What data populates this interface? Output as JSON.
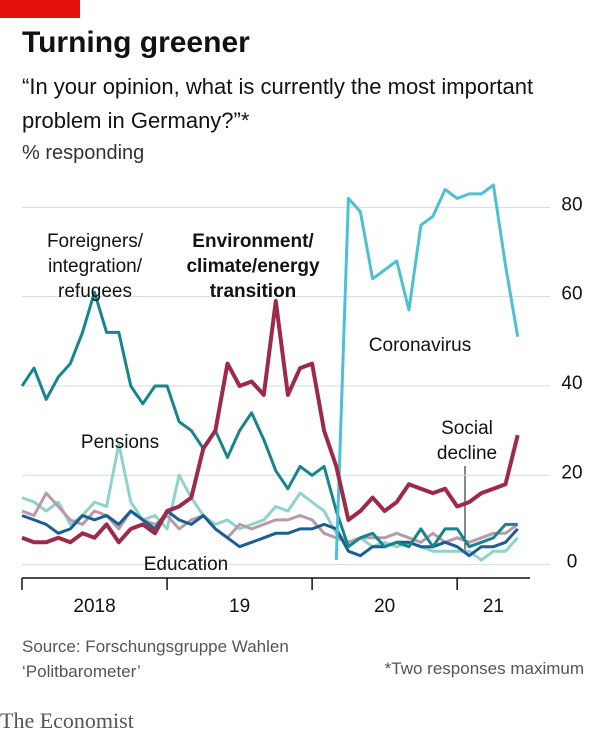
{
  "chart_data": {
    "type": "line",
    "title": "Turning greener",
    "subtitle": "“In your opinion, what is currently the most important problem in Germany?”*",
    "y_axis_label": "% responding",
    "source": "Source: Forschungsgruppe Wahlen ‘Politbarometer’",
    "note": "*Two responses maximum",
    "brand": "The Economist",
    "x": [
      2018,
      2018.083,
      2018.167,
      2018.25,
      2018.333,
      2018.417,
      2018.5,
      2018.583,
      2018.667,
      2018.75,
      2018.833,
      2018.917,
      2019,
      2019.083,
      2019.167,
      2019.25,
      2019.333,
      2019.417,
      2019.5,
      2019.583,
      2019.667,
      2019.75,
      2019.833,
      2019.917,
      2020,
      2020.083,
      2020.167,
      2020.25,
      2020.333,
      2020.417,
      2020.5,
      2020.583,
      2020.667,
      2020.75,
      2020.833,
      2020.917,
      2021,
      2021.083,
      2021.167,
      2021.25,
      2021.333,
      2021.417
    ],
    "xlim": [
      2018,
      2021.64
    ],
    "xticks": [
      {
        "value": 2018.5,
        "label": "2018"
      },
      {
        "value": 2019.5,
        "label": "19"
      },
      {
        "value": 2020.5,
        "label": "20"
      },
      {
        "value": 2021.25,
        "label": "21"
      }
    ],
    "xtick_marks": [
      2018,
      2019,
      2020,
      2021
    ],
    "ylim": [
      -3,
      85
    ],
    "yticks": [
      0,
      20,
      40,
      60,
      80
    ],
    "grid": true,
    "series": [
      {
        "name": "Pensions",
        "color": "#8fd3cc",
        "values": [
          15,
          14,
          12,
          14,
          9,
          11,
          14,
          13,
          27,
          14,
          10,
          11,
          8,
          20,
          15,
          11,
          9,
          10,
          8,
          9,
          10,
          13,
          12,
          16,
          14,
          12,
          7,
          5,
          6,
          4,
          5,
          4,
          5,
          4,
          3,
          3,
          3,
          3,
          1,
          3,
          3,
          6
        ]
      },
      {
        "name": "Social\ndecline",
        "color": "#b99aa6",
        "values": [
          12,
          11,
          16,
          13,
          10,
          9,
          12,
          11,
          8,
          12,
          10,
          9,
          11,
          8,
          10,
          11,
          8,
          6,
          9,
          8,
          9,
          10,
          10,
          11,
          10,
          7,
          6,
          5,
          6,
          6,
          6,
          7,
          6,
          5,
          7,
          5,
          6,
          5,
          6,
          7,
          7,
          9
        ]
      },
      {
        "name": "Education",
        "color": "#1b5e93",
        "values": [
          11,
          10,
          9,
          7,
          8,
          11,
          10,
          11,
          9,
          12,
          10,
          8,
          12,
          10,
          9,
          11,
          8,
          6,
          4,
          5,
          6,
          7,
          7,
          8,
          8,
          9,
          8,
          3,
          2,
          4,
          4,
          5,
          5,
          4,
          4,
          5,
          4,
          2,
          4,
          4,
          5,
          8
        ]
      },
      {
        "name": "Foreigners/\nintegration/\nrefugees",
        "color": "#17858e",
        "values": [
          40,
          44,
          37,
          42,
          45,
          52,
          61,
          52,
          52,
          40,
          36,
          40,
          40,
          32,
          30,
          26,
          30,
          24,
          30,
          34,
          28,
          21,
          17,
          22,
          20,
          22,
          12,
          4,
          6,
          7,
          4,
          5,
          4,
          8,
          4,
          8,
          8,
          4,
          5,
          6,
          9,
          9
        ]
      },
      {
        "name": "Coronavirus",
        "color": "#4ec0d6",
        "values": [
          null,
          null,
          null,
          null,
          null,
          null,
          null,
          null,
          null,
          null,
          null,
          null,
          null,
          null,
          null,
          null,
          null,
          null,
          null,
          null,
          null,
          null,
          null,
          null,
          null,
          null,
          1,
          82,
          79,
          64,
          66,
          68,
          57,
          76,
          78,
          84,
          82,
          83,
          83,
          85,
          67,
          51
        ]
      },
      {
        "name": "Environment/\nclimate/energy\ntransition",
        "color": "#9d2a48",
        "values": [
          6,
          5,
          5,
          6,
          5,
          7,
          6,
          9,
          5,
          8,
          9,
          7,
          12,
          13,
          15,
          26,
          30,
          45,
          40,
          41,
          38,
          59,
          38,
          44,
          45,
          30,
          22,
          10,
          12,
          15,
          12,
          14,
          18,
          17,
          16,
          17,
          13,
          14,
          16,
          17,
          18,
          29
        ]
      }
    ]
  }
}
